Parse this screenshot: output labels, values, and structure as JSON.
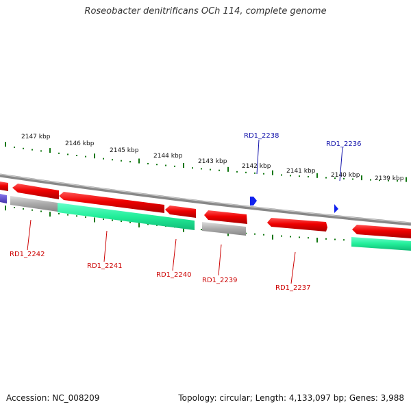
{
  "title": "Roseobacter denitrificans OCh 114, complete genome",
  "footer": {
    "accession": "Accession: NC_008209",
    "summary": "Topology: circular; Length: 4,133,097 bp; Genes: 3,988"
  },
  "colors": {
    "gene_red": "#ee1111",
    "gene_teal": "#22eeaa",
    "gene_gray": "#aaaaaa",
    "gene_blue": "#1122ee",
    "gene_purple": "#6655cc",
    "label_red": "#cc0000",
    "label_blue": "#1111aa",
    "tick_green": "#117711",
    "backbone": "#888888"
  },
  "scale_labels": [
    "2147 kbp",
    "2146 kbp",
    "2145 kbp",
    "2144 kbp",
    "2143 kbp",
    "2142 kbp",
    "2141 kbp",
    "2140 kbp",
    "2139 kbp"
  ],
  "genes": [
    {
      "id": "RD1_2242",
      "color": "red"
    },
    {
      "id": "RD1_2241",
      "color": "red"
    },
    {
      "id": "RD1_2240",
      "color": "red"
    },
    {
      "id": "RD1_2239",
      "color": "red"
    },
    {
      "id": "RD1_2238",
      "color": "blue"
    },
    {
      "id": "RD1_2237",
      "color": "red"
    },
    {
      "id": "RD1_2236",
      "color": "blue"
    }
  ]
}
